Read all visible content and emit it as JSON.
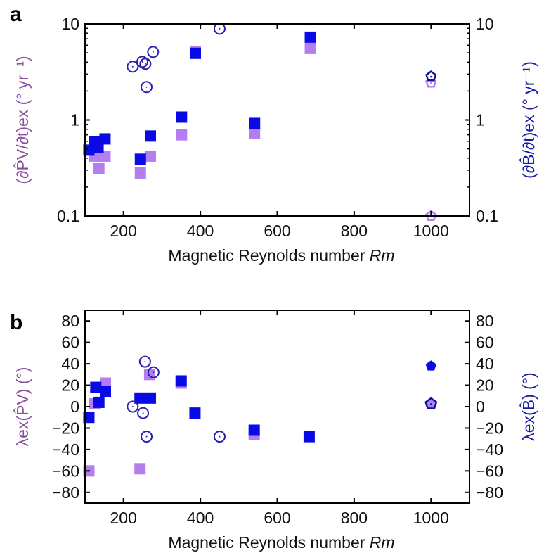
{
  "colors": {
    "purple_marker": "#b57ef0",
    "blue_marker": "#0a0ae6",
    "circle_outline": "#2a1fb0",
    "left_label": "#8a4f9e",
    "right_label": "#1a1aa8",
    "axis": "#000000"
  },
  "chart_data": [
    {
      "panel": "a",
      "type": "scatter",
      "xlabel": "Magnetic Reynolds number ",
      "xlabel_italic": "Rm",
      "ylabel_left": "(∂P̂V/∂t)ex (° yr⁻¹)",
      "ylabel_right": "(∂B̂/∂t)ex (° yr⁻¹)",
      "xlim": [
        100,
        1100
      ],
      "ylim": [
        0.1,
        10
      ],
      "yscale": "log",
      "xticks": [
        200,
        400,
        600,
        800,
        1000
      ],
      "yticks": [
        0.1,
        1,
        10
      ],
      "ytick_labels": [
        "0.1",
        "1",
        "10"
      ],
      "grid": false,
      "series": [
        {
          "name": "PV (purple squares)",
          "marker": "square-filled",
          "color": "purple",
          "points": [
            [
              125,
              0.42
            ],
            [
              136,
              0.31
            ],
            [
              152,
              0.42
            ],
            [
              244,
              0.28
            ],
            [
              270,
              0.42
            ],
            [
              351,
              0.7
            ],
            [
              387,
              5.1
            ],
            [
              541,
              0.73
            ],
            [
              686,
              5.55
            ]
          ]
        },
        {
          "name": "B (blue squares)",
          "marker": "square-filled",
          "color": "blue",
          "points": [
            [
              110,
              0.485
            ],
            [
              125,
              0.59
            ],
            [
              134,
              0.52
            ],
            [
              152,
              0.635
            ],
            [
              244,
              0.39
            ],
            [
              270,
              0.68
            ],
            [
              351,
              1.07
            ],
            [
              387,
              4.94
            ],
            [
              541,
              0.92
            ],
            [
              686,
              7.27
            ]
          ]
        },
        {
          "name": "circle markers",
          "marker": "circle-open-dot",
          "color": "blue",
          "points": [
            [
              224,
              3.59
            ],
            [
              249,
              4.03
            ],
            [
              257,
              3.84
            ],
            [
              260,
              2.2
            ],
            [
              277,
              5.1
            ],
            [
              450,
              8.9
            ]
          ]
        },
        {
          "name": "PV pentagon",
          "marker": "pentagon-open-dot",
          "color": "purple",
          "points": [
            [
              1000,
              2.44
            ],
            [
              1000,
              0.1
            ]
          ]
        },
        {
          "name": "B pentagon",
          "marker": "pentagon-open-dot",
          "color": "blue",
          "points": [
            [
              1000,
              2.84
            ]
          ]
        }
      ]
    },
    {
      "panel": "b",
      "type": "scatter",
      "xlabel": "Magnetic Reynolds number ",
      "xlabel_italic": "Rm",
      "ylabel_left": "λex(P̂V) (°)",
      "ylabel_right": "λex(B̂) (°)",
      "xlim": [
        100,
        1100
      ],
      "ylim": [
        -90,
        90
      ],
      "yscale": "linear",
      "xticks": [
        200,
        400,
        600,
        800,
        1000
      ],
      "yticks": [
        -80,
        -60,
        -40,
        -20,
        0,
        20,
        40,
        60,
        80
      ],
      "ytick_labels": [
        "−80",
        "−60",
        "−40",
        "−20",
        "0",
        "20",
        "40",
        "60",
        "80"
      ],
      "grid": false,
      "series": [
        {
          "name": "PV (purple squares)",
          "marker": "square-filled",
          "color": "purple",
          "points": [
            [
              110,
              -60
            ],
            [
              125,
              2.6
            ],
            [
              153,
              22
            ],
            [
              243,
              -58
            ],
            [
              268,
              30
            ],
            [
              350,
              22
            ],
            [
              540,
              -26
            ]
          ]
        },
        {
          "name": "B (blue squares)",
          "marker": "square-filled",
          "color": "blue",
          "points": [
            [
              110,
              -10
            ],
            [
              128,
              18
            ],
            [
              136,
              4
            ],
            [
              153,
              14
            ],
            [
              243,
              8
            ],
            [
              270,
              8
            ],
            [
              350,
              24
            ],
            [
              386,
              -6
            ],
            [
              540,
              -22
            ],
            [
              683,
              -28
            ]
          ]
        },
        {
          "name": "circle markers",
          "marker": "circle-open-dot",
          "color": "blue",
          "points": [
            [
              224,
              0
            ],
            [
              251,
              -6
            ],
            [
              256,
              42
            ],
            [
              260,
              -28
            ],
            [
              278,
              32
            ],
            [
              450,
              -28
            ]
          ]
        },
        {
          "name": "B pentagon filled",
          "marker": "pentagon-filled",
          "color": "blue",
          "points": [
            [
              1000,
              38
            ]
          ]
        },
        {
          "name": "PV pentagon",
          "marker": "pentagon-open-purple-fill",
          "color": "blue",
          "points": [
            [
              1000,
              2.6
            ]
          ]
        }
      ]
    }
  ]
}
